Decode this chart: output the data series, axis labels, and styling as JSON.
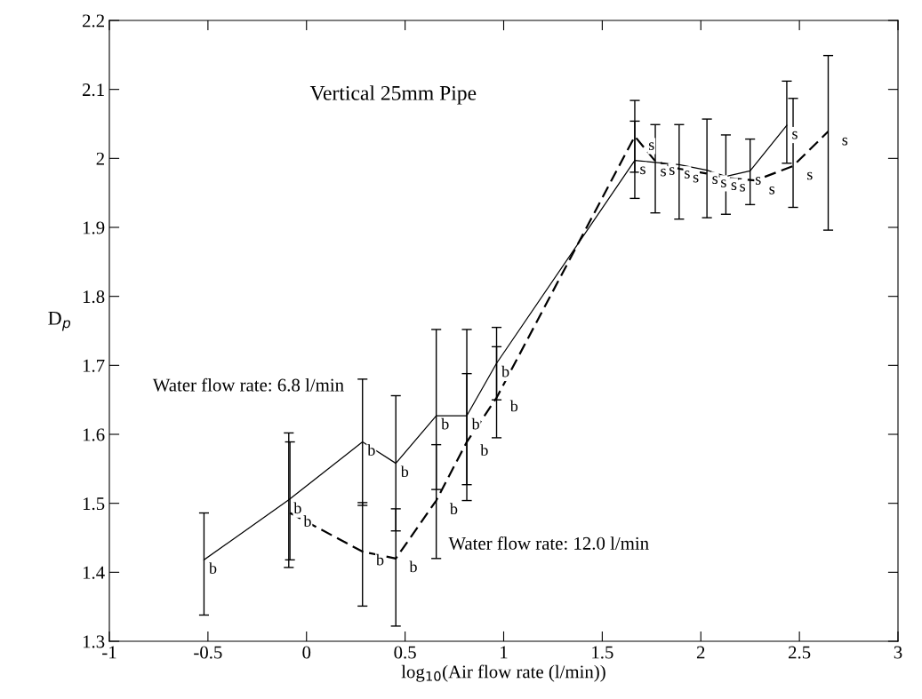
{
  "chart_data": {
    "type": "line",
    "title": "Vertical 25mm Pipe",
    "xlabel": "log$_{10}$(Air flow rate (l/min))",
    "ylabel": "D$_{p}$",
    "xlim": [
      -1,
      3
    ],
    "xticks": [
      -1,
      -0.5,
      0,
      0.5,
      1,
      1.5,
      2,
      2.5,
      3
    ],
    "ylim": [
      1.3,
      2.2
    ],
    "yticks": [
      1.3,
      1.4,
      1.5,
      1.6,
      1.7,
      1.8,
      1.9,
      2,
      2.1,
      2.2
    ],
    "grid": false,
    "legend": false,
    "marker": "none",
    "series": [
      {
        "name": "Water flow rate: 6.8 l/min",
        "color": "#000000",
        "line_style": "solid",
        "x": [
          -0.52,
          -0.09,
          0.284,
          0.453,
          0.658,
          0.813,
          0.964,
          1.665,
          1.769,
          1.89,
          2.031,
          2.127,
          2.25,
          2.436
        ],
        "values": [
          1.418,
          1.505,
          1.589,
          1.558,
          1.627,
          1.627,
          1.703,
          1.997,
          1.994,
          1.991,
          1.983,
          1.974,
          1.982,
          2.048
        ],
        "errors": [
          [
            1.338,
            1.486
          ],
          [
            1.407,
            1.602
          ],
          [
            1.497,
            1.68
          ],
          [
            1.46,
            1.656
          ],
          [
            1.52,
            1.752
          ],
          [
            1.504,
            1.752
          ],
          [
            1.65,
            1.755
          ],
          [
            1.942,
            2.054
          ],
          [
            1.921,
            2.049
          ],
          [
            1.912,
            2.049
          ],
          [
            1.914,
            2.057
          ],
          [
            1.919,
            2.034
          ],
          [
            1.933,
            2.028
          ],
          [
            1.993,
            2.112
          ]
        ]
      },
      {
        "name": "Water flow rate: 12.0 l/min",
        "color": "#000000",
        "line_style": "dashed",
        "x": [
          -0.084,
          0.284,
          0.453,
          0.658,
          0.813,
          0.964,
          1.665,
          1.769,
          1.89,
          2.031,
          2.127,
          2.276,
          2.468,
          2.646
        ],
        "values": [
          1.486,
          1.43,
          1.42,
          1.504,
          1.589,
          1.653,
          2.032,
          1.996,
          1.985,
          1.978,
          1.972,
          1.968,
          1.989,
          2.039
        ],
        "errors": [
          [
            1.418,
            1.589
          ],
          [
            1.351,
            1.501
          ],
          [
            1.322,
            1.492
          ],
          [
            1.42,
            1.585
          ],
          [
            1.527,
            1.688
          ],
          [
            1.595,
            1.727
          ],
          [
            1.98,
            2.084
          ],
          null,
          null,
          null,
          null,
          null,
          [
            1.929,
            2.087
          ],
          [
            1.896,
            2.149
          ]
        ]
      }
    ],
    "annotations": [
      {
        "text": "b",
        "x": -0.52,
        "y": 1.418
      },
      {
        "text": "b",
        "x": -0.09,
        "y": 1.505
      },
      {
        "text": "b",
        "x": 0.284,
        "y": 1.589
      },
      {
        "text": "b",
        "x": 0.453,
        "y": 1.558
      },
      {
        "text": "b",
        "x": 0.658,
        "y": 1.627
      },
      {
        "text": "b",
        "x": 0.813,
        "y": 1.627
      },
      {
        "text": "b",
        "x": 0.964,
        "y": 1.703
      },
      {
        "text": "s",
        "x": 1.665,
        "y": 1.997
      },
      {
        "text": "s",
        "x": 1.769,
        "y": 1.994
      },
      {
        "text": "s",
        "x": 1.89,
        "y": 1.991
      },
      {
        "text": "s",
        "x": 2.031,
        "y": 1.983
      },
      {
        "text": "s",
        "x": 2.127,
        "y": 1.974
      },
      {
        "text": "s",
        "x": 2.25,
        "y": 1.982
      },
      {
        "text": "s",
        "x": 2.436,
        "y": 2.048
      },
      {
        "text": "b",
        "x": -0.084,
        "y": 1.486
      },
      {
        "text": "b",
        "x": 0.284,
        "y": 1.43
      },
      {
        "text": "b",
        "x": 0.453,
        "y": 1.42
      },
      {
        "text": "b",
        "x": 0.658,
        "y": 1.504
      },
      {
        "text": "b",
        "x": 0.813,
        "y": 1.589
      },
      {
        "text": "b",
        "x": 0.964,
        "y": 1.653
      },
      {
        "text": "s",
        "x": 1.665,
        "y": 2.032
      },
      {
        "text": "s",
        "x": 1.769,
        "y": 1.996
      },
      {
        "text": "s",
        "x": 1.89,
        "y": 1.985
      },
      {
        "text": "s",
        "x": 2.031,
        "y": 1.978
      },
      {
        "text": "s",
        "x": 2.127,
        "y": 1.972
      },
      {
        "text": "s",
        "x": 2.276,
        "y": 1.968
      },
      {
        "text": "s",
        "x": 2.468,
        "y": 1.989
      },
      {
        "text": "s",
        "x": 2.646,
        "y": 2.039
      }
    ]
  }
}
